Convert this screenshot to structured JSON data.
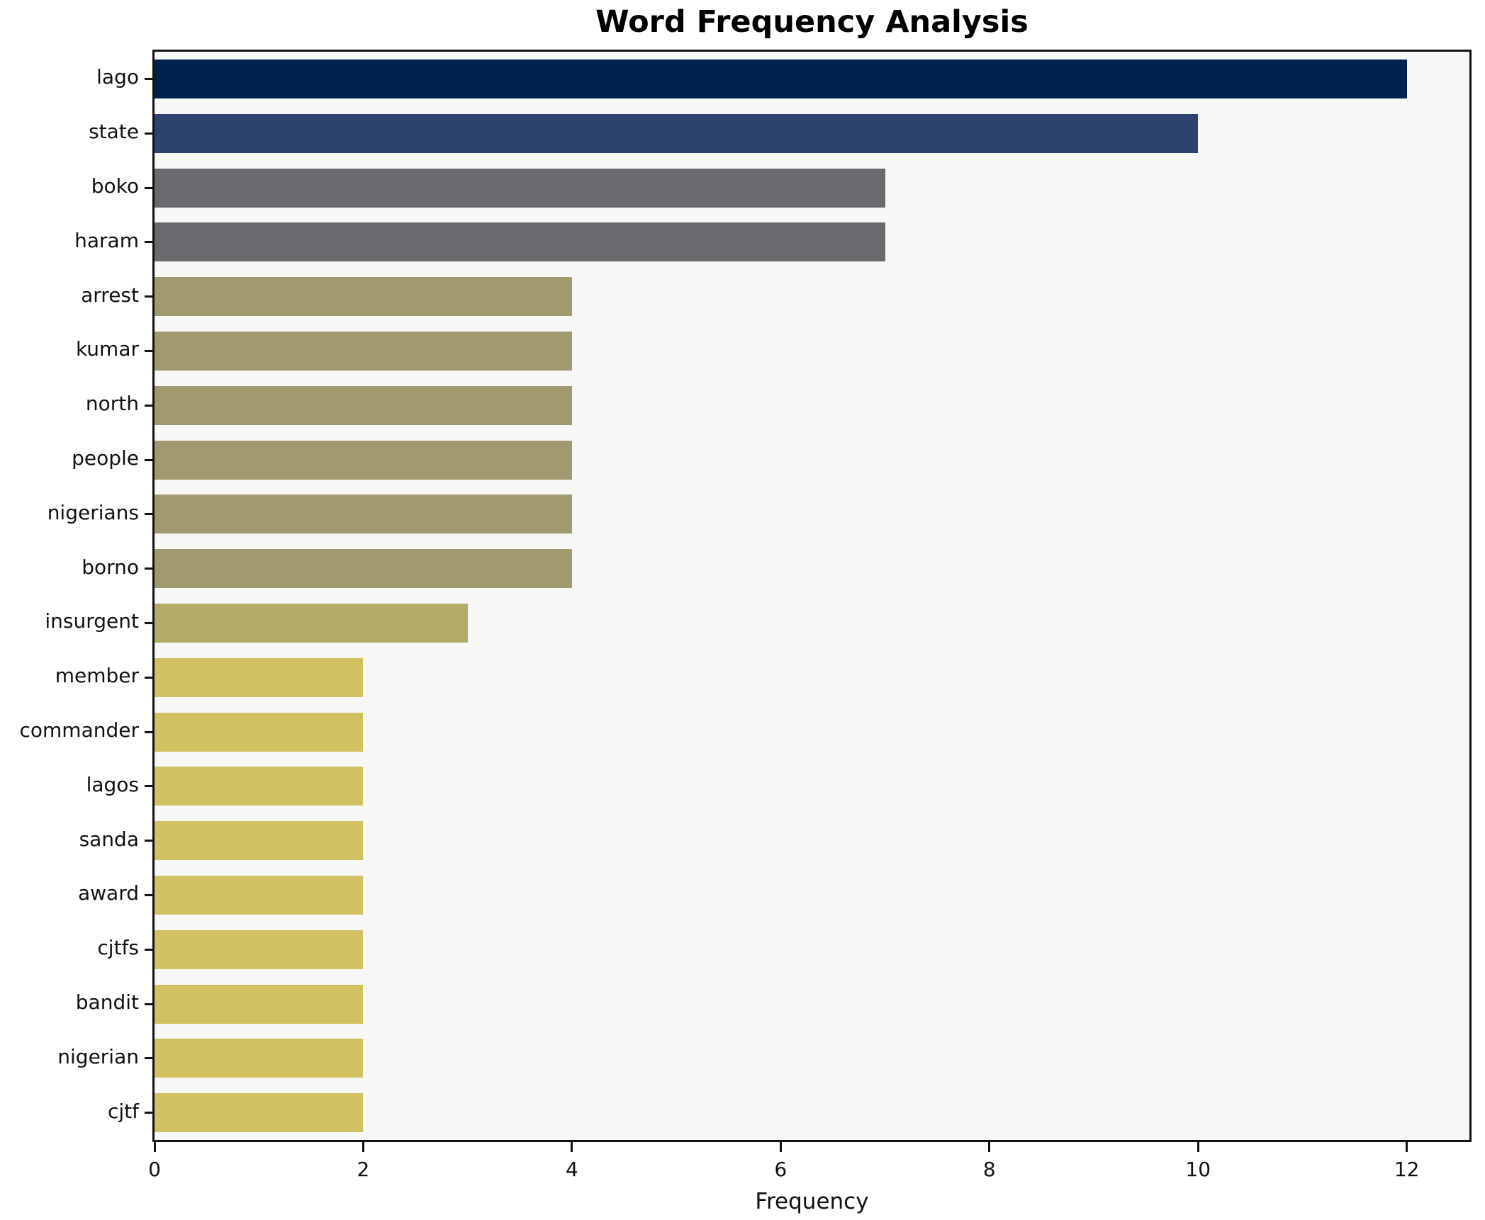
{
  "chart_data": {
    "type": "bar",
    "orientation": "horizontal",
    "title": "Word Frequency Analysis",
    "xlabel": "Frequency",
    "ylabel": "",
    "categories": [
      "lago",
      "state",
      "boko",
      "haram",
      "arrest",
      "kumar",
      "north",
      "people",
      "nigerians",
      "borno",
      "insurgent",
      "member",
      "commander",
      "lagos",
      "sanda",
      "award",
      "cjtfs",
      "bandit",
      "nigerian",
      "cjtf"
    ],
    "values": [
      12,
      10,
      7,
      7,
      4,
      4,
      4,
      4,
      4,
      4,
      3,
      2,
      2,
      2,
      2,
      2,
      2,
      2,
      2,
      2
    ],
    "bar_colors": [
      "#00234d",
      "#2e4270",
      "#696a6e",
      "#696a6e",
      "#a19a70",
      "#a19a70",
      "#a19a70",
      "#a19a70",
      "#a19a70",
      "#a19a70",
      "#b3ab67",
      "#d2c161",
      "#d2c161",
      "#d2c161",
      "#d2c161",
      "#d2c161",
      "#d2c161",
      "#d2c161",
      "#d2c161",
      "#d2c161"
    ],
    "xlim": [
      0,
      12.6
    ],
    "xticks": [
      0,
      2,
      4,
      6,
      8,
      10,
      12
    ],
    "xtick_labels": [
      "0",
      "2",
      "4",
      "6",
      "8",
      "10",
      "12"
    ],
    "grid": false,
    "legend": "none",
    "plot_background": "#f7f7f5",
    "figure_background": "#ffffff",
    "spine_color": "#121212"
  }
}
